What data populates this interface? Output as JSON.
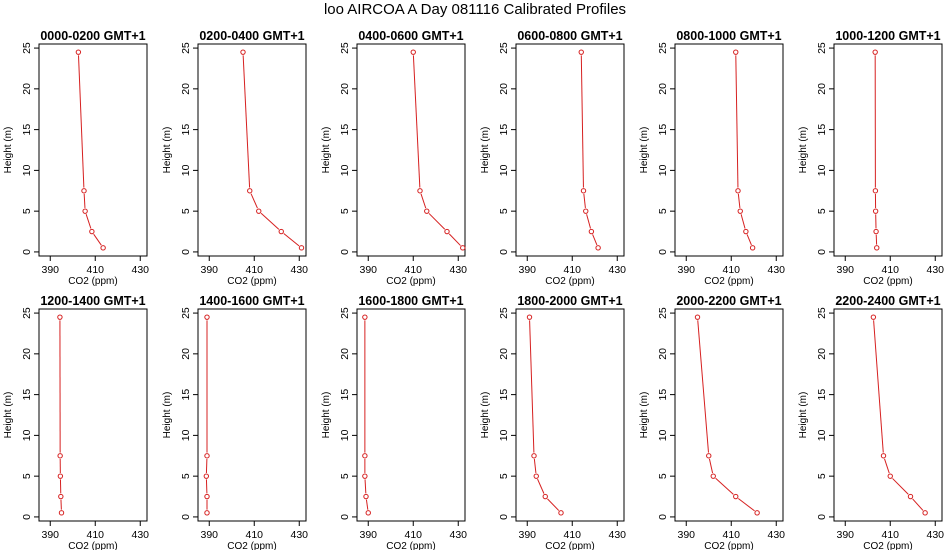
{
  "title": "loo AIRCOA A  Day 081116  Calibrated Profiles",
  "colors": {
    "series": "#d62020",
    "axis": "#000000"
  },
  "chart_data": [
    {
      "type": "line",
      "title": "0000-0200 GMT+1",
      "xlabel": "CO2 (ppm)",
      "ylabel": "Height (m)",
      "xlim": [
        385,
        433
      ],
      "ylim": [
        -0.5,
        25.5
      ],
      "xticks": [
        "390",
        "410",
        "430"
      ],
      "yticks": [
        "0",
        "5",
        "10",
        "15",
        "20",
        "25"
      ],
      "grid": false,
      "points": [
        [
          413.5,
          0.5
        ],
        [
          408.5,
          2.5
        ],
        [
          405.5,
          5
        ],
        [
          405,
          7.5
        ],
        [
          402.5,
          24.5
        ]
      ]
    },
    {
      "type": "line",
      "title": "0200-0400 GMT+1",
      "xlabel": "CO2 (ppm)",
      "ylabel": "Height (m)",
      "xlim": [
        385,
        433
      ],
      "ylim": [
        -0.5,
        25.5
      ],
      "xticks": [
        "390",
        "410",
        "430"
      ],
      "yticks": [
        "0",
        "5",
        "10",
        "15",
        "20",
        "25"
      ],
      "grid": false,
      "points": [
        [
          431,
          0.5
        ],
        [
          422,
          2.5
        ],
        [
          412,
          5
        ],
        [
          408,
          7.5
        ],
        [
          405,
          24.5
        ]
      ]
    },
    {
      "type": "line",
      "title": "0400-0600 GMT+1",
      "xlabel": "CO2 (ppm)",
      "ylabel": "Height (m)",
      "xlim": [
        385,
        433
      ],
      "ylim": [
        -0.5,
        25.5
      ],
      "xticks": [
        "390",
        "410",
        "430"
      ],
      "yticks": [
        "0",
        "5",
        "10",
        "15",
        "20",
        "25"
      ],
      "grid": false,
      "points": [
        [
          432,
          0.5
        ],
        [
          425,
          2.5
        ],
        [
          416,
          5
        ],
        [
          413,
          7.5
        ],
        [
          410,
          24.5
        ]
      ]
    },
    {
      "type": "line",
      "title": "0600-0800 GMT+1",
      "xlabel": "CO2 (ppm)",
      "ylabel": "Height (m)",
      "xlim": [
        385,
        433
      ],
      "ylim": [
        -0.5,
        25.5
      ],
      "xticks": [
        "390",
        "410",
        "430"
      ],
      "yticks": [
        "0",
        "5",
        "10",
        "15",
        "20",
        "25"
      ],
      "grid": false,
      "points": [
        [
          421.5,
          0.5
        ],
        [
          418.5,
          2.5
        ],
        [
          416,
          5
        ],
        [
          415,
          7.5
        ],
        [
          414,
          24.5
        ]
      ]
    },
    {
      "type": "line",
      "title": "0800-1000 GMT+1",
      "xlabel": "CO2 (ppm)",
      "ylabel": "Height (m)",
      "xlim": [
        385,
        433
      ],
      "ylim": [
        -0.5,
        25.5
      ],
      "xticks": [
        "390",
        "410",
        "430"
      ],
      "yticks": [
        "0",
        "5",
        "10",
        "15",
        "20",
        "25"
      ],
      "grid": false,
      "points": [
        [
          419.5,
          0.5
        ],
        [
          416.5,
          2.5
        ],
        [
          414,
          5
        ],
        [
          413,
          7.5
        ],
        [
          412,
          24.5
        ]
      ]
    },
    {
      "type": "line",
      "title": "1000-1200 GMT+1",
      "xlabel": "CO2 (ppm)",
      "ylabel": "Height (m)",
      "xlim": [
        385,
        433
      ],
      "ylim": [
        -0.5,
        25.5
      ],
      "xticks": [
        "390",
        "410",
        "430"
      ],
      "yticks": [
        "0",
        "5",
        "10",
        "15",
        "20",
        "25"
      ],
      "grid": false,
      "points": [
        [
          404,
          0.5
        ],
        [
          403.7,
          2.5
        ],
        [
          403.5,
          5
        ],
        [
          403.4,
          7.5
        ],
        [
          403.3,
          24.5
        ]
      ]
    },
    {
      "type": "line",
      "title": "1200-1400 GMT+1",
      "xlabel": "CO2 (ppm)",
      "ylabel": "Height (m)",
      "xlim": [
        385,
        433
      ],
      "ylim": [
        -0.5,
        25.5
      ],
      "xticks": [
        "390",
        "410",
        "430"
      ],
      "yticks": [
        "0",
        "5",
        "10",
        "15",
        "20",
        "25"
      ],
      "grid": false,
      "points": [
        [
          395,
          0.5
        ],
        [
          394.7,
          2.5
        ],
        [
          394.5,
          5
        ],
        [
          394.4,
          7.5
        ],
        [
          394.3,
          24.5
        ]
      ]
    },
    {
      "type": "line",
      "title": "1400-1600 GMT+1",
      "xlabel": "CO2 (ppm)",
      "ylabel": "Height (m)",
      "xlim": [
        385,
        433
      ],
      "ylim": [
        -0.5,
        25.5
      ],
      "xticks": [
        "390",
        "410",
        "430"
      ],
      "yticks": [
        "0",
        "5",
        "10",
        "15",
        "20",
        "25"
      ],
      "grid": false,
      "points": [
        [
          389,
          0.5
        ],
        [
          389,
          2.5
        ],
        [
          388.7,
          5
        ],
        [
          389,
          7.5
        ],
        [
          389,
          24.5
        ]
      ]
    },
    {
      "type": "line",
      "title": "1600-1800 GMT+1",
      "xlabel": "CO2 (ppm)",
      "ylabel": "Height (m)",
      "xlim": [
        385,
        433
      ],
      "ylim": [
        -0.5,
        25.5
      ],
      "xticks": [
        "390",
        "410",
        "430"
      ],
      "yticks": [
        "0",
        "5",
        "10",
        "15",
        "20",
        "25"
      ],
      "grid": false,
      "points": [
        [
          390,
          0.5
        ],
        [
          389,
          2.5
        ],
        [
          388.5,
          5
        ],
        [
          388.5,
          7.5
        ],
        [
          388.5,
          24.5
        ]
      ]
    },
    {
      "type": "line",
      "title": "1800-2000 GMT+1",
      "xlabel": "CO2 (ppm)",
      "ylabel": "Height (m)",
      "xlim": [
        385,
        433
      ],
      "ylim": [
        -0.5,
        25.5
      ],
      "xticks": [
        "390",
        "410",
        "430"
      ],
      "yticks": [
        "0",
        "5",
        "10",
        "15",
        "20",
        "25"
      ],
      "grid": false,
      "points": [
        [
          405,
          0.5
        ],
        [
          398,
          2.5
        ],
        [
          394,
          5
        ],
        [
          393,
          7.5
        ],
        [
          391,
          24.5
        ]
      ]
    },
    {
      "type": "line",
      "title": "2000-2200 GMT+1",
      "xlabel": "CO2 (ppm)",
      "ylabel": "Height (m)",
      "xlim": [
        385,
        433
      ],
      "ylim": [
        -0.5,
        25.5
      ],
      "xticks": [
        "390",
        "410",
        "430"
      ],
      "yticks": [
        "0",
        "5",
        "10",
        "15",
        "20",
        "25"
      ],
      "grid": false,
      "points": [
        [
          421.5,
          0.5
        ],
        [
          412,
          2.5
        ],
        [
          402,
          5
        ],
        [
          400,
          7.5
        ],
        [
          395,
          24.5
        ]
      ]
    },
    {
      "type": "line",
      "title": "2200-2400 GMT+1",
      "xlabel": "CO2 (ppm)",
      "ylabel": "Height (m)",
      "xlim": [
        385,
        433
      ],
      "ylim": [
        -0.5,
        25.5
      ],
      "xticks": [
        "390",
        "410",
        "430"
      ],
      "yticks": [
        "0",
        "5",
        "10",
        "15",
        "20",
        "25"
      ],
      "grid": false,
      "points": [
        [
          425.5,
          0.5
        ],
        [
          419,
          2.5
        ],
        [
          410,
          5
        ],
        [
          407,
          7.5
        ],
        [
          402.5,
          24.5
        ]
      ]
    }
  ]
}
